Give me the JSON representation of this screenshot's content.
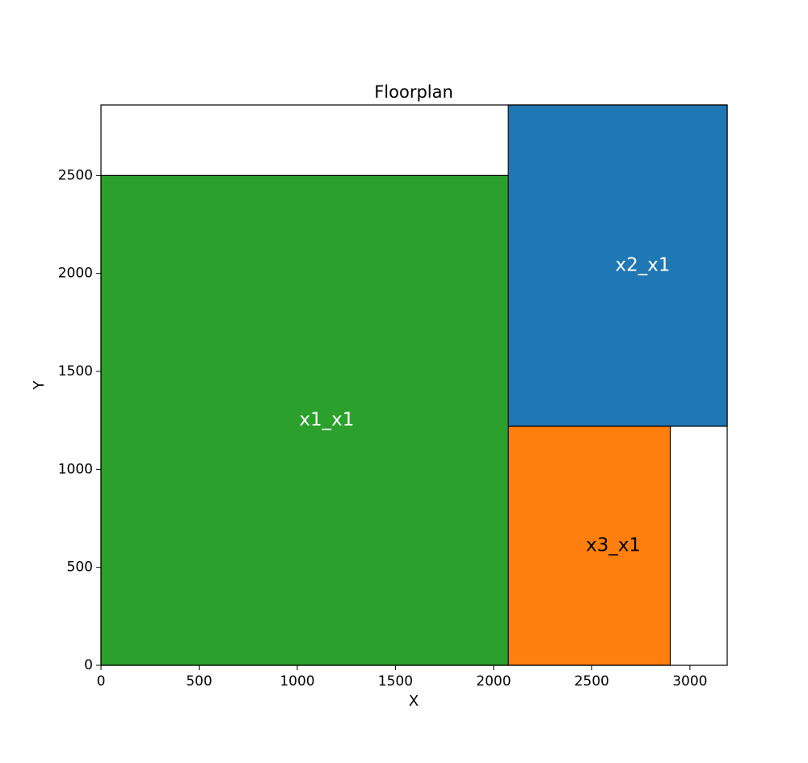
{
  "chart_data": {
    "type": "floorplan",
    "title": "Floorplan",
    "xlabel": "X",
    "ylabel": "Y",
    "xlim": [
      0,
      3190
    ],
    "ylim": [
      0,
      2860
    ],
    "xticks": [
      0,
      500,
      1000,
      1500,
      2000,
      2500,
      3000
    ],
    "yticks": [
      0,
      500,
      1000,
      1500,
      2000,
      2500
    ],
    "rooms": [
      {
        "name": "x1_x1",
        "x": 0,
        "y": 0,
        "width": 2075,
        "height": 2500,
        "color": "#2ca02c",
        "label_color": "#ffffff",
        "label_x": 1150,
        "label_y": 1250
      },
      {
        "name": "x2_x1",
        "x": 2075,
        "y": 1220,
        "width": 1115,
        "height": 1640,
        "color": "#1f77b4",
        "label_color": "#ffffff",
        "label_x": 2760,
        "label_y": 2040
      },
      {
        "name": "x3_x1",
        "x": 2075,
        "y": 0,
        "width": 825,
        "height": 1220,
        "color": "#ff7f0e",
        "label_color": "#000000",
        "label_x": 2610,
        "label_y": 610
      }
    ]
  }
}
